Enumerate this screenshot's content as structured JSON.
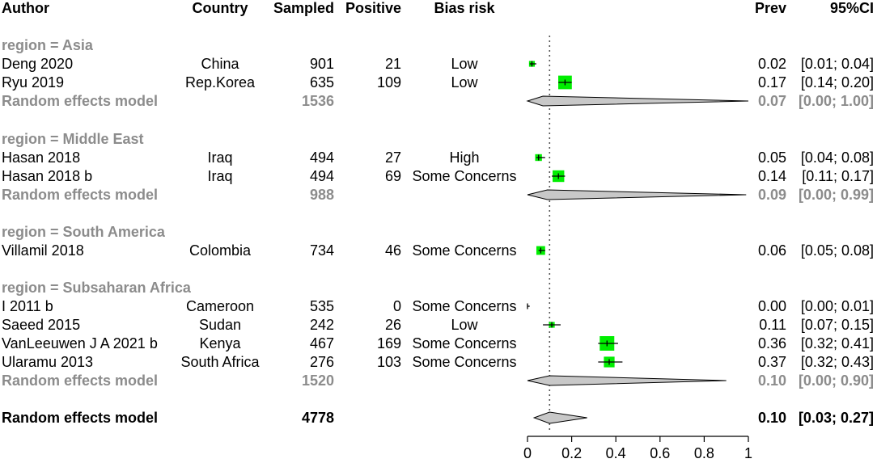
{
  "headers": {
    "author": "Author",
    "country": "Country",
    "sampled": "Sampled",
    "positive": "Positive",
    "bias": "Bias risk",
    "prev": "Prev",
    "ci": "95%CI"
  },
  "colors": {
    "box": "#00ee00",
    "diamond": "#c8c8c8",
    "group_text": "#8c8c8c",
    "line": "#000000"
  },
  "groups": [
    {
      "label": "region = Asia",
      "studies": [
        {
          "author": "Deng 2020",
          "country": "China",
          "sampled": "901",
          "positive": "21",
          "bias": "Low",
          "prev_text": "0.02",
          "ci_text": "[0.01; 0.04]"
        },
        {
          "author": "Ryu 2019",
          "country": "Rep.Korea",
          "sampled": "635",
          "positive": "109",
          "bias": "Low",
          "prev_text": "0.17",
          "ci_text": "[0.14; 0.20]"
        }
      ],
      "random": {
        "label": "Random effects model",
        "sampled": "1536",
        "prev_text": "0.07",
        "ci_text": "[0.00; 1.00]"
      }
    },
    {
      "label": "region = Middle East",
      "studies": [
        {
          "author": "Hasan 2018",
          "country": "Iraq",
          "sampled": "494",
          "positive": "27",
          "bias": "High",
          "prev_text": "0.05",
          "ci_text": "[0.04; 0.08]"
        },
        {
          "author": "Hasan 2018 b",
          "country": "Iraq",
          "sampled": "494",
          "positive": "69",
          "bias": "Some Concerns",
          "prev_text": "0.14",
          "ci_text": "[0.11; 0.17]"
        }
      ],
      "random": {
        "label": "Random effects model",
        "sampled": "988",
        "prev_text": "0.09",
        "ci_text": "[0.00; 0.99]"
      }
    },
    {
      "label": "region = South America",
      "studies": [
        {
          "author": "Villamil 2018",
          "country": "Colombia",
          "sampled": "734",
          "positive": "46",
          "bias": "Some Concerns",
          "prev_text": "0.06",
          "ci_text": "[0.05; 0.08]"
        }
      ],
      "random": null
    },
    {
      "label": "region = Subsaharan Africa",
      "studies": [
        {
          "author": "I 2011 b",
          "country": "Cameroon",
          "sampled": "535",
          "positive": "0",
          "bias": "Some Concerns",
          "prev_text": "0.00",
          "ci_text": "[0.00; 0.01]"
        },
        {
          "author": "Saeed 2015",
          "country": "Sudan",
          "sampled": "242",
          "positive": "26",
          "bias": "Low",
          "prev_text": "0.11",
          "ci_text": "[0.07; 0.15]"
        },
        {
          "author": "VanLeeuwen J A 2021 b",
          "country": "Kenya",
          "sampled": "467",
          "positive": "169",
          "bias": "Some Concerns",
          "prev_text": "0.36",
          "ci_text": "[0.32; 0.41]"
        },
        {
          "author": "Ularamu 2013",
          "country": "South Africa",
          "sampled": "276",
          "positive": "103",
          "bias": "Some Concerns",
          "prev_text": "0.37",
          "ci_text": "[0.32; 0.43]"
        }
      ],
      "random": {
        "label": "Random effects model",
        "sampled": "1520",
        "prev_text": "0.10",
        "ci_text": "[0.00; 0.90]"
      }
    }
  ],
  "overall": {
    "label": "Random effects model",
    "sampled": "4778",
    "prev_text": "0.10",
    "ci_text": "[0.03; 0.27]"
  },
  "chart_data": {
    "type": "forest",
    "title": "",
    "xlabel": "",
    "ylabel": "",
    "xlim": [
      0,
      1
    ],
    "xticks": [
      0,
      0.2,
      0.4,
      0.6,
      0.8,
      1
    ],
    "xtick_labels": [
      "0",
      "0.2",
      "0.4",
      "0.6",
      "0.8",
      "1"
    ],
    "reference_line": 0.1,
    "studies": [
      {
        "label": "Deng 2020",
        "est": 0.02,
        "lo": 0.01,
        "hi": 0.04,
        "weight": 0.6
      },
      {
        "label": "Ryu 2019",
        "est": 0.17,
        "lo": 0.14,
        "hi": 0.2,
        "weight": 1.4
      },
      {
        "label": "Hasan 2018",
        "est": 0.05,
        "lo": 0.04,
        "hi": 0.08,
        "weight": 0.7
      },
      {
        "label": "Hasan 2018 b",
        "est": 0.14,
        "lo": 0.11,
        "hi": 0.17,
        "weight": 1.2
      },
      {
        "label": "Villamil 2018",
        "est": 0.06,
        "lo": 0.05,
        "hi": 0.08,
        "weight": 0.9
      },
      {
        "label": "I 2011 b",
        "est": 0.0,
        "lo": 0.0,
        "hi": 0.01,
        "weight": 0.15
      },
      {
        "label": "Saeed 2015",
        "est": 0.11,
        "lo": 0.07,
        "hi": 0.15,
        "weight": 0.6
      },
      {
        "label": "VanLeeuwen J A 2021 b",
        "est": 0.36,
        "lo": 0.32,
        "hi": 0.41,
        "weight": 1.5
      },
      {
        "label": "Ularamu 2013",
        "est": 0.37,
        "lo": 0.32,
        "hi": 0.43,
        "weight": 1.1
      }
    ],
    "subgroup_summaries": [
      {
        "label": "Asia",
        "est": 0.07,
        "lo": 0.0,
        "hi": 1.0
      },
      {
        "label": "Middle East",
        "est": 0.09,
        "lo": 0.0,
        "hi": 0.99
      },
      {
        "label": "Subsaharan Africa",
        "est": 0.1,
        "lo": 0.0,
        "hi": 0.9
      }
    ],
    "overall_summary": {
      "label": "Random effects model",
      "est": 0.1,
      "lo": 0.03,
      "hi": 0.27
    }
  }
}
